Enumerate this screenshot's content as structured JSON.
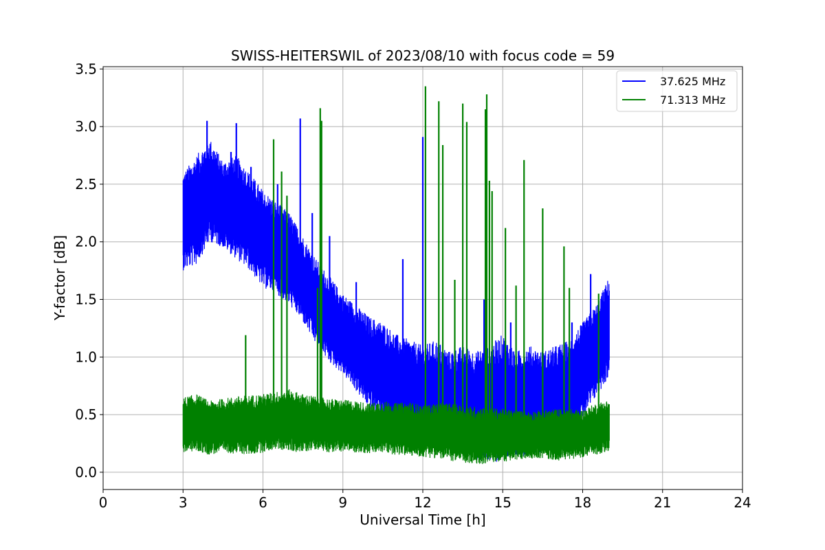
{
  "chart_data": {
    "type": "line",
    "title": "SWISS-HEITERSWIL of 2023/08/10 with focus code = 59",
    "xlabel": "Universal Time [h]",
    "ylabel": "Y-factor [dB]",
    "xlim": [
      0,
      24
    ],
    "ylim": [
      -0.15,
      3.52
    ],
    "xticks": [
      0,
      3,
      6,
      9,
      12,
      15,
      18,
      21,
      24
    ],
    "xtick_labels": [
      "0",
      "3",
      "6",
      "9",
      "12",
      "15",
      "18",
      "21",
      "24"
    ],
    "yticks": [
      0.0,
      0.5,
      1.0,
      1.5,
      2.0,
      2.5,
      3.0,
      3.5
    ],
    "ytick_labels": [
      "0.0",
      "0.5",
      "1.0",
      "1.5",
      "2.0",
      "2.5",
      "3.0",
      "3.5"
    ],
    "grid": true,
    "legend_position": "top-right",
    "series": [
      {
        "name": "37.625 MHz",
        "color": "#0000ff",
        "x": [
          3.0,
          3.5,
          4.0,
          4.5,
          5.0,
          5.5,
          6.0,
          6.5,
          7.0,
          7.5,
          8.0,
          8.5,
          9.0,
          9.5,
          10.0,
          10.5,
          11.0,
          11.5,
          12.0,
          12.5,
          13.0,
          13.5,
          14.0,
          14.5,
          15.0,
          15.5,
          16.0,
          16.5,
          17.0,
          17.5,
          18.0,
          18.5,
          19.0
        ],
        "y_min": [
          1.75,
          1.8,
          2.0,
          1.95,
          1.85,
          1.75,
          1.6,
          1.55,
          1.45,
          1.3,
          1.1,
          0.95,
          0.85,
          0.7,
          0.55,
          0.45,
          0.35,
          0.28,
          0.22,
          0.2,
          0.18,
          0.15,
          0.1,
          0.08,
          0.1,
          0.12,
          0.15,
          0.18,
          0.2,
          0.3,
          0.45,
          0.65,
          0.83
        ],
        "y_max": [
          2.6,
          2.75,
          2.9,
          2.7,
          2.75,
          2.6,
          2.45,
          2.35,
          2.25,
          2.05,
          1.85,
          1.7,
          1.55,
          1.45,
          1.35,
          1.3,
          1.2,
          1.15,
          1.1,
          1.15,
          1.05,
          1.1,
          1.05,
          1.1,
          1.2,
          1.05,
          1.1,
          1.05,
          1.1,
          1.15,
          1.3,
          1.45,
          1.7
        ],
        "spikes": [
          {
            "x": 3.9,
            "y": 3.05
          },
          {
            "x": 4.8,
            "y": 2.78
          },
          {
            "x": 5.0,
            "y": 3.03
          },
          {
            "x": 5.55,
            "y": 2.65
          },
          {
            "x": 6.55,
            "y": 2.5
          },
          {
            "x": 7.4,
            "y": 3.07
          },
          {
            "x": 7.85,
            "y": 2.25
          },
          {
            "x": 8.5,
            "y": 2.05
          },
          {
            "x": 9.5,
            "y": 1.65
          },
          {
            "x": 11.25,
            "y": 1.85
          },
          {
            "x": 12.0,
            "y": 2.91
          },
          {
            "x": 14.3,
            "y": 1.5
          },
          {
            "x": 15.3,
            "y": 1.3
          },
          {
            "x": 17.6,
            "y": 1.3
          },
          {
            "x": 18.3,
            "y": 1.72
          }
        ]
      },
      {
        "name": "71.313 MHz",
        "color": "#008000",
        "x": [
          3.0,
          3.5,
          4.0,
          4.5,
          5.0,
          5.5,
          6.0,
          6.5,
          7.0,
          7.5,
          8.0,
          8.5,
          9.0,
          9.5,
          10.0,
          10.5,
          11.0,
          11.5,
          12.0,
          12.5,
          13.0,
          13.5,
          14.0,
          14.5,
          15.0,
          15.5,
          16.0,
          16.5,
          17.0,
          17.5,
          18.0,
          18.5,
          19.0
        ],
        "y_min": [
          0.17,
          0.18,
          0.15,
          0.17,
          0.16,
          0.15,
          0.17,
          0.2,
          0.18,
          0.17,
          0.2,
          0.17,
          0.18,
          0.17,
          0.16,
          0.17,
          0.15,
          0.14,
          0.13,
          0.12,
          0.1,
          0.08,
          0.06,
          0.08,
          0.09,
          0.1,
          0.12,
          0.12,
          0.1,
          0.11,
          0.13,
          0.15,
          0.18
        ],
        "y_max": [
          0.65,
          0.68,
          0.62,
          0.64,
          0.66,
          0.67,
          0.68,
          0.7,
          0.72,
          0.68,
          0.66,
          0.64,
          0.63,
          0.62,
          0.6,
          0.62,
          0.6,
          0.61,
          0.58,
          0.6,
          0.6,
          0.58,
          0.57,
          0.56,
          0.55,
          0.54,
          0.53,
          0.54,
          0.55,
          0.55,
          0.54,
          0.6,
          0.63
        ],
        "spikes": [
          {
            "x": 5.35,
            "y": 1.19
          },
          {
            "x": 6.4,
            "y": 2.89
          },
          {
            "x": 6.7,
            "y": 2.61
          },
          {
            "x": 6.9,
            "y": 2.4
          },
          {
            "x": 8.05,
            "y": 1.6
          },
          {
            "x": 8.15,
            "y": 3.16
          },
          {
            "x": 8.2,
            "y": 3.05
          },
          {
            "x": 12.1,
            "y": 3.35
          },
          {
            "x": 12.6,
            "y": 3.22
          },
          {
            "x": 12.75,
            "y": 2.84
          },
          {
            "x": 13.2,
            "y": 1.67
          },
          {
            "x": 13.5,
            "y": 3.2
          },
          {
            "x": 13.65,
            "y": 3.04
          },
          {
            "x": 14.4,
            "y": 3.28
          },
          {
            "x": 14.35,
            "y": 3.15
          },
          {
            "x": 14.5,
            "y": 2.53
          },
          {
            "x": 14.6,
            "y": 2.44
          },
          {
            "x": 15.1,
            "y": 2.12
          },
          {
            "x": 15.5,
            "y": 1.62
          },
          {
            "x": 15.8,
            "y": 2.71
          },
          {
            "x": 16.5,
            "y": 2.29
          },
          {
            "x": 17.3,
            "y": 1.96
          },
          {
            "x": 17.5,
            "y": 1.6
          },
          {
            "x": 18.6,
            "y": 1.55
          }
        ]
      }
    ]
  }
}
